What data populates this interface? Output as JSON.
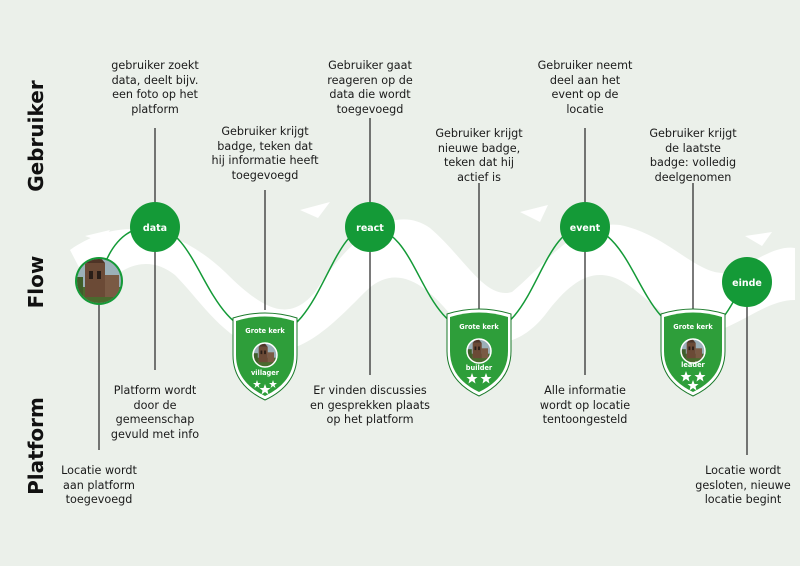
{
  "rows": {
    "user": "Gebruiker",
    "flow": "Flow",
    "platform": "Platform"
  },
  "nodes": {
    "data": "data",
    "react": "react",
    "event": "event",
    "end": "einde"
  },
  "badges": [
    {
      "title": "Grote kerk",
      "level": "villager",
      "stars": 3
    },
    {
      "title": "Grote kerk",
      "level": "builder",
      "stars": 2
    },
    {
      "title": "Grote kerk",
      "level": "leader",
      "stars": 3
    }
  ],
  "user_texts": {
    "data": "gebruiker zoekt\ndata, deelt bijv.\neen foto op het\nplatform",
    "badge1": "Gebruiker krijgt\nbadge, teken dat\nhij informatie heeft\ntoegevoegd",
    "react": "Gebruiker gaat\nreageren op de\ndata die wordt\ntoegevoegd",
    "badge2": "Gebruiker krijgt\nnieuwe badge,\nteken dat hij\nactief is",
    "event": "Gebruiker neemt\ndeel aan het\nevent op de\nlocatie",
    "badge3": "Gebruiker krijgt\nde laatste\nbadge: volledig\ndeelgenomen"
  },
  "platform_texts": {
    "start": "Locatie wordt\naan platform\ntoegevoegd",
    "data": "Platform wordt\ndoor de\ngemeenschap\ngevuld met info",
    "react": "Er vinden discussies\nen gesprekken plaats\nop het platform",
    "event": "Alle informatie\nwordt op locatie\ntentoongesteld",
    "end": "Locatie wordt\ngesloten, nieuwe\nlocatie begint"
  },
  "colors": {
    "green": "#149a37",
    "badge_green": "#2e9e3a",
    "background": "#ebf0ea",
    "brush": "#ffffff"
  },
  "icons": {
    "start": "church-photo",
    "badge_photo": "church-photo",
    "star": "star-icon"
  }
}
